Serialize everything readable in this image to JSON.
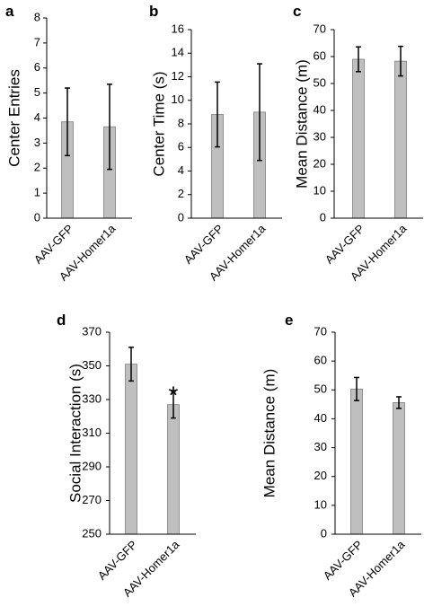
{
  "chart_data": [
    {
      "panel": "a",
      "type": "bar",
      "categories": [
        "AAV-GFP",
        "AAV-Homer1a"
      ],
      "values": [
        3.85,
        3.65
      ],
      "errors": [
        1.35,
        1.7
      ],
      "ylabel": "Center Entries",
      "ylim": [
        0,
        8
      ],
      "yticks": [
        0,
        1,
        2,
        3,
        4,
        5,
        6,
        7,
        8
      ],
      "significance": [
        "",
        ""
      ],
      "color": "#bfbfbf"
    },
    {
      "panel": "b",
      "type": "bar",
      "categories": [
        "AAV-GFP",
        "AAV-Homer1a"
      ],
      "values": [
        8.8,
        9.0
      ],
      "errors": [
        2.75,
        4.1
      ],
      "ylabel": "Center Time (s)",
      "ylim": [
        0,
        16
      ],
      "yticks": [
        0,
        2,
        4,
        6,
        8,
        10,
        12,
        14,
        16
      ],
      "significance": [
        "",
        ""
      ],
      "color": "#bfbfbf"
    },
    {
      "panel": "c",
      "type": "bar",
      "categories": [
        "AAV-GFP",
        "AAV-Homer1a"
      ],
      "values": [
        59,
        58.3
      ],
      "errors": [
        4.6,
        5.5
      ],
      "ylabel": "Mean Distance (m)",
      "ylim": [
        0,
        70
      ],
      "yticks": [
        0,
        10,
        20,
        30,
        40,
        50,
        60,
        70
      ],
      "significance": [
        "",
        ""
      ],
      "color": "#bfbfbf"
    },
    {
      "panel": "d",
      "type": "bar",
      "categories": [
        "AAV-GFP",
        "AAV-Homer1a"
      ],
      "values": [
        351,
        327
      ],
      "errors": [
        10,
        8
      ],
      "ylabel": "Social Interaction (s)",
      "ylim": [
        250,
        370
      ],
      "yticks": [
        250,
        270,
        290,
        310,
        330,
        350,
        370
      ],
      "significance": [
        "",
        "*"
      ],
      "color": "#bfbfbf"
    },
    {
      "panel": "e",
      "type": "bar",
      "categories": [
        "AAV-GFP",
        "AAV-Homer1a"
      ],
      "values": [
        50.3,
        45.6
      ],
      "errors": [
        4.0,
        2.0
      ],
      "ylabel": "Mean Distance (m)",
      "ylim": [
        0,
        70
      ],
      "yticks": [
        0,
        10,
        20,
        30,
        40,
        50,
        60,
        70
      ],
      "significance": [
        "",
        ""
      ],
      "color": "#bfbfbf"
    }
  ]
}
